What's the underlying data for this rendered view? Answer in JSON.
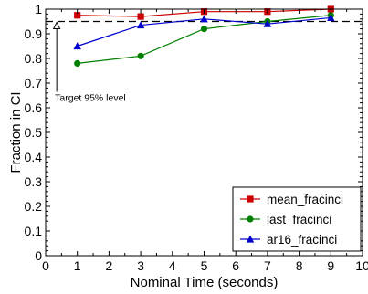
{
  "chart_data": {
    "type": "line",
    "xlabel": "Nominal Time (seconds)",
    "ylabel": "Fraction in CI",
    "xlim": [
      0,
      10
    ],
    "ylim": [
      0,
      1
    ],
    "xticks": [
      0,
      1,
      2,
      3,
      4,
      5,
      6,
      7,
      8,
      9,
      10
    ],
    "yticks": [
      0,
      0.1,
      0.2,
      0.3,
      0.4,
      0.5,
      0.6,
      0.7,
      0.8,
      0.9,
      1
    ],
    "xtick_labels": [
      "0",
      "1",
      "2",
      "3",
      "4",
      "5",
      "6",
      "7",
      "8",
      "9",
      "10"
    ],
    "ytick_labels": [
      "0",
      "0.1",
      "0.2",
      "0.3",
      "0.4",
      "0.5",
      "0.6",
      "0.7",
      "0.8",
      "0.9",
      "1"
    ],
    "grid": false,
    "legend_position": "bottom-right",
    "reference_line": {
      "y": 0.95,
      "style": "dashed",
      "color": "#000000"
    },
    "annotation": {
      "text": "Target 95% level",
      "arrow_x": 0.35,
      "arrow_from_y": 0.665,
      "arrow_to_y": 0.95
    },
    "series": [
      {
        "name": "mean_fracinci",
        "color": "#cc0000",
        "marker": "square",
        "x": [
          1,
          3,
          5,
          7,
          9
        ],
        "y": [
          0.975,
          0.97,
          0.99,
          0.99,
          1.0
        ]
      },
      {
        "name": "last_fracinci",
        "color": "#008000",
        "marker": "circle",
        "x": [
          1,
          3,
          5,
          7,
          9
        ],
        "y": [
          0.78,
          0.81,
          0.92,
          0.95,
          0.975
        ]
      },
      {
        "name": "ar16_fracinci",
        "color": "#0000cc",
        "marker": "triangle",
        "x": [
          1,
          3,
          5,
          7,
          9
        ],
        "y": [
          0.85,
          0.935,
          0.96,
          0.94,
          0.965
        ]
      }
    ]
  }
}
